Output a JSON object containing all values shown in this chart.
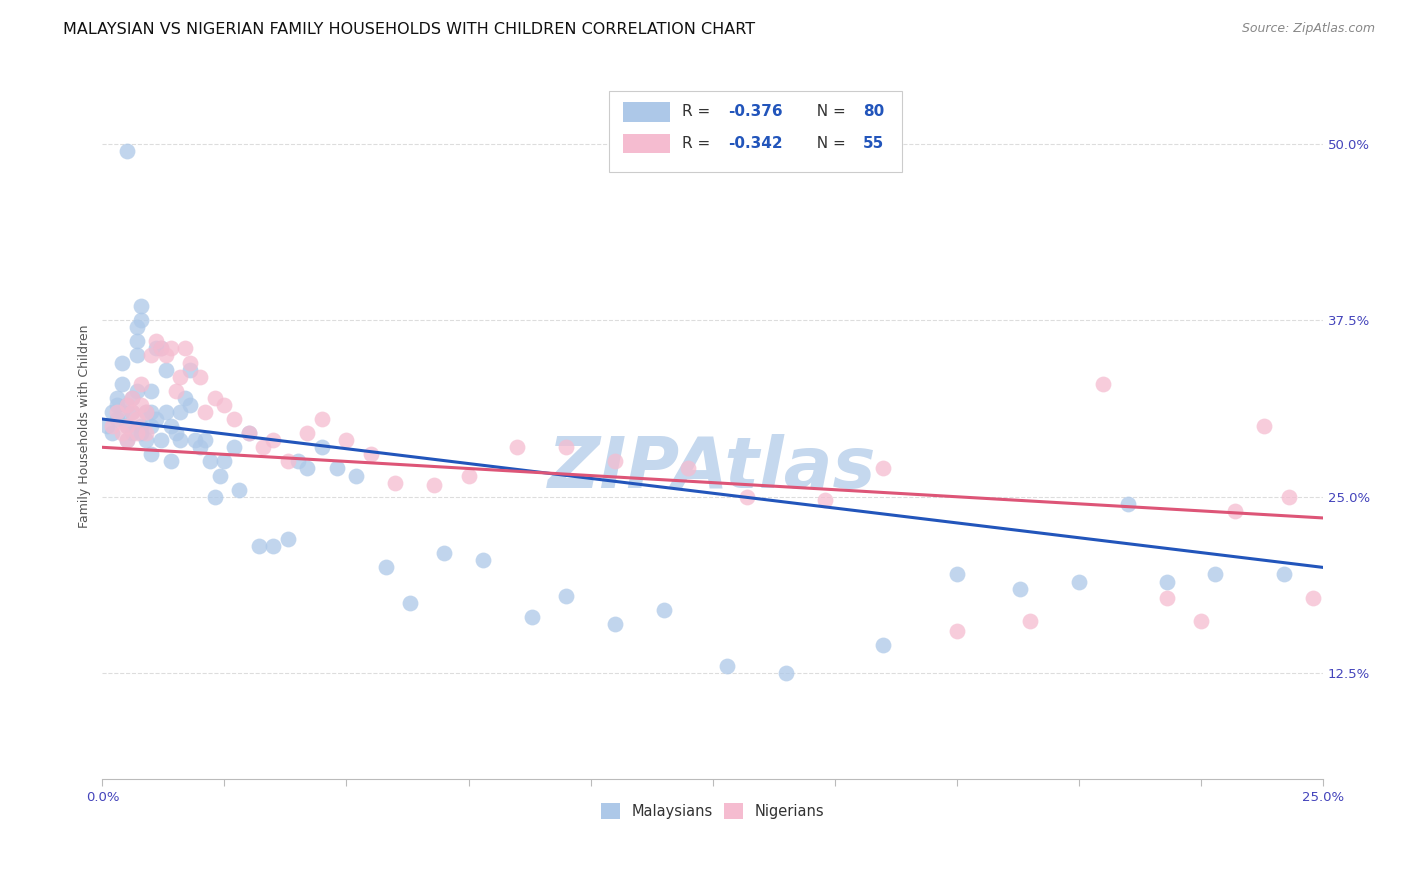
{
  "title": "MALAYSIAN VS NIGERIAN FAMILY HOUSEHOLDS WITH CHILDREN CORRELATION CHART",
  "source": "Source: ZipAtlas.com",
  "ylabel_label": "Family Households with Children",
  "xlim": [
    0.0,
    0.25
  ],
  "ylim": [
    0.05,
    0.55
  ],
  "xticks": [
    0.0,
    0.025,
    0.05,
    0.075,
    0.1,
    0.125,
    0.15,
    0.175,
    0.2,
    0.225,
    0.25
  ],
  "yticks": [
    0.125,
    0.25,
    0.375,
    0.5
  ],
  "ytick_labels": [
    "12.5%",
    "25.0%",
    "37.5%",
    "50.0%"
  ],
  "legend_r_malaysian": "-0.376",
  "legend_n_malaysian": "80",
  "legend_r_nigerian": "-0.342",
  "legend_n_nigerian": "55",
  "watermark": "ZIPAtlas",
  "malaysia_color": "#adc8e8",
  "nigeria_color": "#f5bcd0",
  "malaysia_line_color": "#2255bb",
  "nigeria_line_color": "#dd5577",
  "malaysian_x": [
    0.001,
    0.002,
    0.002,
    0.003,
    0.003,
    0.003,
    0.004,
    0.004,
    0.004,
    0.005,
    0.005,
    0.005,
    0.005,
    0.006,
    0.006,
    0.006,
    0.007,
    0.007,
    0.007,
    0.007,
    0.008,
    0.008,
    0.008,
    0.008,
    0.009,
    0.009,
    0.01,
    0.01,
    0.01,
    0.01,
    0.011,
    0.011,
    0.012,
    0.012,
    0.013,
    0.013,
    0.014,
    0.014,
    0.015,
    0.016,
    0.016,
    0.017,
    0.018,
    0.018,
    0.019,
    0.02,
    0.021,
    0.022,
    0.023,
    0.024,
    0.025,
    0.027,
    0.028,
    0.03,
    0.032,
    0.035,
    0.038,
    0.04,
    0.042,
    0.045,
    0.048,
    0.052,
    0.058,
    0.063,
    0.07,
    0.078,
    0.088,
    0.095,
    0.105,
    0.115,
    0.128,
    0.14,
    0.16,
    0.175,
    0.188,
    0.2,
    0.21,
    0.218,
    0.228,
    0.242
  ],
  "malaysian_y": [
    0.3,
    0.31,
    0.295,
    0.32,
    0.315,
    0.305,
    0.33,
    0.31,
    0.345,
    0.495,
    0.315,
    0.3,
    0.29,
    0.32,
    0.31,
    0.295,
    0.37,
    0.36,
    0.35,
    0.325,
    0.385,
    0.375,
    0.3,
    0.295,
    0.31,
    0.29,
    0.325,
    0.31,
    0.3,
    0.28,
    0.355,
    0.305,
    0.355,
    0.29,
    0.34,
    0.31,
    0.3,
    0.275,
    0.295,
    0.31,
    0.29,
    0.32,
    0.34,
    0.315,
    0.29,
    0.285,
    0.29,
    0.275,
    0.25,
    0.265,
    0.275,
    0.285,
    0.255,
    0.295,
    0.215,
    0.215,
    0.22,
    0.275,
    0.27,
    0.285,
    0.27,
    0.265,
    0.2,
    0.175,
    0.21,
    0.205,
    0.165,
    0.18,
    0.16,
    0.17,
    0.13,
    0.125,
    0.145,
    0.195,
    0.185,
    0.19,
    0.245,
    0.19,
    0.195,
    0.195
  ],
  "nigerian_x": [
    0.002,
    0.003,
    0.004,
    0.005,
    0.005,
    0.005,
    0.006,
    0.006,
    0.007,
    0.007,
    0.008,
    0.008,
    0.009,
    0.009,
    0.01,
    0.011,
    0.012,
    0.013,
    0.014,
    0.015,
    0.016,
    0.017,
    0.018,
    0.02,
    0.021,
    0.023,
    0.025,
    0.027,
    0.03,
    0.033,
    0.035,
    0.038,
    0.042,
    0.045,
    0.05,
    0.055,
    0.06,
    0.068,
    0.075,
    0.085,
    0.095,
    0.105,
    0.12,
    0.132,
    0.148,
    0.16,
    0.175,
    0.19,
    0.205,
    0.218,
    0.225,
    0.232,
    0.238,
    0.243,
    0.248
  ],
  "nigerian_y": [
    0.3,
    0.31,
    0.295,
    0.315,
    0.3,
    0.29,
    0.32,
    0.31,
    0.305,
    0.295,
    0.33,
    0.315,
    0.31,
    0.295,
    0.35,
    0.36,
    0.355,
    0.35,
    0.355,
    0.325,
    0.335,
    0.355,
    0.345,
    0.335,
    0.31,
    0.32,
    0.315,
    0.305,
    0.295,
    0.285,
    0.29,
    0.275,
    0.295,
    0.305,
    0.29,
    0.28,
    0.26,
    0.258,
    0.265,
    0.285,
    0.285,
    0.275,
    0.27,
    0.25,
    0.248,
    0.27,
    0.155,
    0.162,
    0.33,
    0.178,
    0.162,
    0.24,
    0.3,
    0.25,
    0.178
  ],
  "background_color": "#ffffff",
  "grid_color": "#dddddd",
  "axis_color": "#4444bb",
  "title_color": "#111111",
  "title_fontsize": 11.5,
  "source_fontsize": 9,
  "label_fontsize": 9,
  "tick_fontsize": 9.5,
  "watermark_color": "#c5d8ee",
  "watermark_fontsize": 52
}
